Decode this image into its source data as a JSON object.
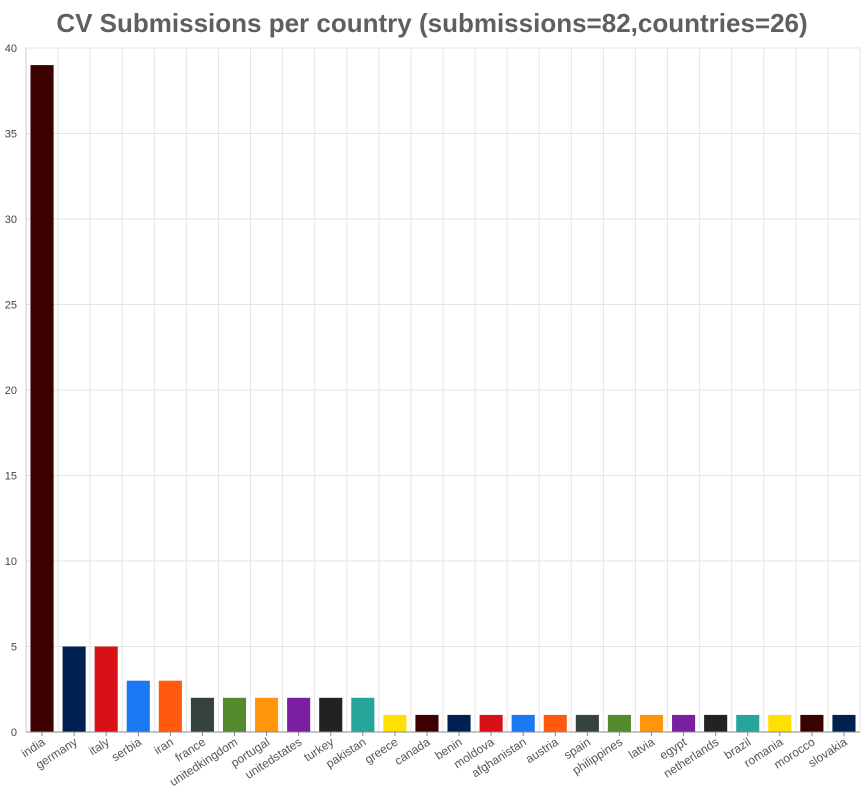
{
  "chart_data": {
    "type": "bar",
    "title": "CV Submissions per country (submissions=82,countries=26)",
    "xlabel": "",
    "ylabel": "",
    "ylim": [
      0,
      40
    ],
    "yticks": [
      0,
      5,
      10,
      15,
      20,
      25,
      30,
      35,
      40
    ],
    "grid": true,
    "legend": "none",
    "categories": [
      "india",
      "germany",
      "italy",
      "serbia",
      "iran",
      "france",
      "unitedkingdom",
      "portugal",
      "unitedstates",
      "turkey",
      "pakistan",
      "greece",
      "canada",
      "benin",
      "moldova",
      "afghanistan",
      "austria",
      "spain",
      "philippines",
      "latvia",
      "egypt",
      "netherlands",
      "brazil",
      "romania",
      "morocco",
      "slovakia"
    ],
    "values": [
      39,
      5,
      5,
      3,
      3,
      2,
      2,
      2,
      2,
      2,
      2,
      1,
      1,
      1,
      1,
      1,
      1,
      1,
      1,
      1,
      1,
      1,
      1,
      1,
      1,
      1
    ],
    "colors": [
      "#3b0000",
      "#002050",
      "#d81118",
      "#1a78f2",
      "#ff5a0f",
      "#374140",
      "#558b2f",
      "#ff960a",
      "#7b1fa2",
      "#222222",
      "#26a69a",
      "#ffe000",
      "#3b0000",
      "#002050",
      "#d81118",
      "#1a78f2",
      "#ff5a0f",
      "#374140",
      "#558b2f",
      "#ff960a",
      "#7b1fa2",
      "#222222",
      "#26a69a",
      "#ffe000",
      "#3b0000",
      "#002050"
    ]
  }
}
